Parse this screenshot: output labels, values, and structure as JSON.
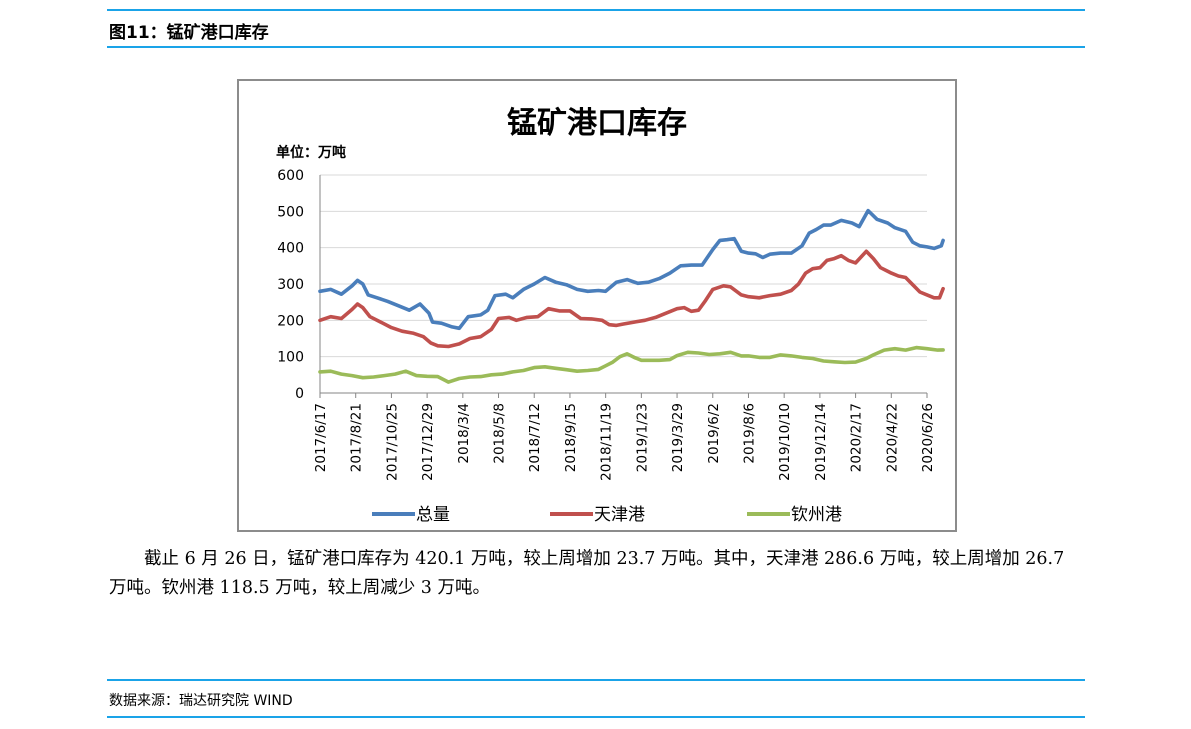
{
  "figure_header": "图11：锰矿港口库存",
  "paragraph": "截止 6 月 26 日，锰矿港口库存为 420.1 万吨，较上周增加 23.7 万吨。其中，天津港 286.6 万吨，较上周增加 26.7 万吨。钦州港 118.5 万吨，较上周减少 3 万吨。",
  "source_text": "数据来源：瑞达研究院 WIND",
  "colors": {
    "rule": "#1aa3e8",
    "total": "#4a7ebb",
    "tianjin": "#c0504d",
    "qinzhou": "#9bbb59",
    "grid": "#d9d9d9"
  },
  "chart_data": {
    "type": "line",
    "title": "锰矿港口库存",
    "unit_label": "单位：万吨",
    "ylim": [
      0,
      600
    ],
    "yticks": [
      0,
      100,
      200,
      300,
      400,
      500,
      600
    ],
    "grid": "horizontal",
    "legend_position": "bottom",
    "x_tick_labels": [
      "2017/6/17",
      "2017/8/21",
      "2017/10/25",
      "2017/12/29",
      "2018/3/4",
      "2018/5/8",
      "2018/7/12",
      "2018/9/15",
      "2018/11/19",
      "2019/1/23",
      "2019/3/29",
      "2019/6/2",
      "2019/8/6",
      "2019/10/10",
      "2019/12/14",
      "2020/2/17",
      "2020/4/22",
      "2020/6/26"
    ],
    "series": [
      {
        "name": "总量",
        "color": "#4a7ebb",
        "points": [
          [
            0,
            280
          ],
          [
            0.3,
            285
          ],
          [
            0.6,
            272
          ],
          [
            0.9,
            295
          ],
          [
            1.05,
            310
          ],
          [
            1.2,
            300
          ],
          [
            1.35,
            270
          ],
          [
            1.6,
            262
          ],
          [
            1.9,
            252
          ],
          [
            2.2,
            240
          ],
          [
            2.5,
            228
          ],
          [
            2.8,
            245
          ],
          [
            3.05,
            220
          ],
          [
            3.15,
            195
          ],
          [
            3.4,
            192
          ],
          [
            3.7,
            182
          ],
          [
            3.9,
            178
          ],
          [
            4.15,
            210
          ],
          [
            4.5,
            215
          ],
          [
            4.7,
            228
          ],
          [
            4.9,
            268
          ],
          [
            5.2,
            272
          ],
          [
            5.4,
            262
          ],
          [
            5.7,
            285
          ],
          [
            6.0,
            300
          ],
          [
            6.3,
            318
          ],
          [
            6.6,
            305
          ],
          [
            6.9,
            298
          ],
          [
            7.2,
            285
          ],
          [
            7.5,
            280
          ],
          [
            7.8,
            282
          ],
          [
            8.0,
            280
          ],
          [
            8.3,
            305
          ],
          [
            8.6,
            312
          ],
          [
            8.9,
            302
          ],
          [
            9.2,
            305
          ],
          [
            9.5,
            315
          ],
          [
            9.8,
            330
          ],
          [
            10.1,
            350
          ],
          [
            10.4,
            352
          ],
          [
            10.7,
            352
          ],
          [
            11.0,
            395
          ],
          [
            11.2,
            420
          ],
          [
            11.4,
            422
          ],
          [
            11.6,
            425
          ],
          [
            11.8,
            390
          ],
          [
            12.0,
            385
          ],
          [
            12.2,
            383
          ],
          [
            12.4,
            373
          ],
          [
            12.6,
            382
          ],
          [
            12.9,
            385
          ],
          [
            13.2,
            385
          ],
          [
            13.5,
            405
          ],
          [
            13.7,
            440
          ],
          [
            13.9,
            450
          ],
          [
            14.1,
            462
          ],
          [
            14.3,
            462
          ],
          [
            14.6,
            475
          ],
          [
            14.9,
            468
          ],
          [
            15.1,
            458
          ],
          [
            15.35,
            502
          ],
          [
            15.6,
            478
          ],
          [
            15.9,
            468
          ],
          [
            16.1,
            455
          ],
          [
            16.4,
            445
          ],
          [
            16.6,
            415
          ],
          [
            16.8,
            405
          ],
          [
            17.0,
            402
          ],
          [
            17.2,
            398
          ],
          [
            17.4,
            405
          ],
          [
            17.45,
            420
          ]
        ]
      },
      {
        "name": "天津港",
        "color": "#c0504d",
        "points": [
          [
            0,
            200
          ],
          [
            0.3,
            210
          ],
          [
            0.6,
            205
          ],
          [
            0.9,
            230
          ],
          [
            1.05,
            245
          ],
          [
            1.2,
            235
          ],
          [
            1.4,
            210
          ],
          [
            1.7,
            195
          ],
          [
            2.0,
            180
          ],
          [
            2.3,
            170
          ],
          [
            2.6,
            165
          ],
          [
            2.9,
            155
          ],
          [
            3.1,
            138
          ],
          [
            3.3,
            130
          ],
          [
            3.6,
            128
          ],
          [
            3.9,
            135
          ],
          [
            4.2,
            150
          ],
          [
            4.5,
            155
          ],
          [
            4.8,
            175
          ],
          [
            5.0,
            205
          ],
          [
            5.3,
            208
          ],
          [
            5.5,
            200
          ],
          [
            5.8,
            208
          ],
          [
            6.1,
            210
          ],
          [
            6.4,
            232
          ],
          [
            6.7,
            226
          ],
          [
            7.0,
            226
          ],
          [
            7.3,
            205
          ],
          [
            7.6,
            204
          ],
          [
            7.9,
            200
          ],
          [
            8.1,
            188
          ],
          [
            8.3,
            186
          ],
          [
            8.5,
            190
          ],
          [
            8.8,
            195
          ],
          [
            9.1,
            200
          ],
          [
            9.4,
            208
          ],
          [
            9.7,
            220
          ],
          [
            10.0,
            232
          ],
          [
            10.2,
            235
          ],
          [
            10.4,
            225
          ],
          [
            10.6,
            228
          ],
          [
            10.8,
            255
          ],
          [
            11.0,
            285
          ],
          [
            11.3,
            295
          ],
          [
            11.5,
            292
          ],
          [
            11.8,
            270
          ],
          [
            12.0,
            265
          ],
          [
            12.3,
            262
          ],
          [
            12.6,
            268
          ],
          [
            12.9,
            272
          ],
          [
            13.2,
            282
          ],
          [
            13.4,
            300
          ],
          [
            13.6,
            330
          ],
          [
            13.8,
            342
          ],
          [
            14.0,
            345
          ],
          [
            14.2,
            365
          ],
          [
            14.4,
            370
          ],
          [
            14.6,
            378
          ],
          [
            14.8,
            365
          ],
          [
            15.0,
            358
          ],
          [
            15.3,
            390
          ],
          [
            15.5,
            370
          ],
          [
            15.7,
            345
          ],
          [
            16.0,
            330
          ],
          [
            16.2,
            322
          ],
          [
            16.4,
            318
          ],
          [
            16.6,
            298
          ],
          [
            16.8,
            278
          ],
          [
            17.0,
            270
          ],
          [
            17.2,
            262
          ],
          [
            17.35,
            262
          ],
          [
            17.45,
            287
          ]
        ]
      },
      {
        "name": "钦州港",
        "color": "#9bbb59",
        "points": [
          [
            0,
            58
          ],
          [
            0.3,
            60
          ],
          [
            0.6,
            52
          ],
          [
            0.9,
            48
          ],
          [
            1.2,
            42
          ],
          [
            1.5,
            44
          ],
          [
            1.8,
            48
          ],
          [
            2.1,
            52
          ],
          [
            2.4,
            60
          ],
          [
            2.7,
            48
          ],
          [
            3.0,
            46
          ],
          [
            3.3,
            45
          ],
          [
            3.6,
            30
          ],
          [
            3.9,
            40
          ],
          [
            4.2,
            44
          ],
          [
            4.5,
            45
          ],
          [
            4.8,
            50
          ],
          [
            5.1,
            52
          ],
          [
            5.4,
            58
          ],
          [
            5.7,
            62
          ],
          [
            6.0,
            70
          ],
          [
            6.3,
            72
          ],
          [
            6.6,
            68
          ],
          [
            6.9,
            64
          ],
          [
            7.2,
            60
          ],
          [
            7.5,
            62
          ],
          [
            7.8,
            65
          ],
          [
            8.0,
            75
          ],
          [
            8.2,
            85
          ],
          [
            8.4,
            100
          ],
          [
            8.6,
            108
          ],
          [
            8.8,
            98
          ],
          [
            9.0,
            90
          ],
          [
            9.2,
            90
          ],
          [
            9.5,
            90
          ],
          [
            9.8,
            92
          ],
          [
            10.0,
            103
          ],
          [
            10.3,
            112
          ],
          [
            10.6,
            110
          ],
          [
            10.9,
            106
          ],
          [
            11.2,
            108
          ],
          [
            11.5,
            112
          ],
          [
            11.8,
            102
          ],
          [
            12.0,
            102
          ],
          [
            12.3,
            98
          ],
          [
            12.6,
            98
          ],
          [
            12.9,
            105
          ],
          [
            13.2,
            102
          ],
          [
            13.5,
            98
          ],
          [
            13.8,
            95
          ],
          [
            14.1,
            88
          ],
          [
            14.4,
            86
          ],
          [
            14.7,
            84
          ],
          [
            15.0,
            85
          ],
          [
            15.3,
            95
          ],
          [
            15.5,
            105
          ],
          [
            15.8,
            118
          ],
          [
            16.1,
            122
          ],
          [
            16.4,
            118
          ],
          [
            16.7,
            125
          ],
          [
            17.0,
            122
          ],
          [
            17.3,
            118
          ],
          [
            17.45,
            118.5
          ]
        ]
      }
    ]
  }
}
